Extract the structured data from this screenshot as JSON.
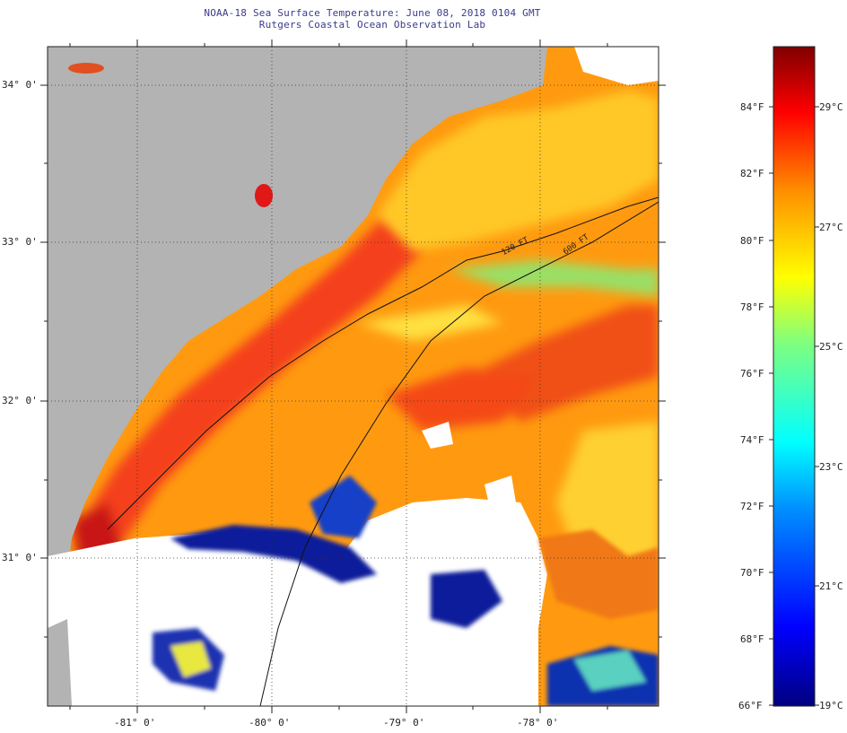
{
  "header": {
    "title": "NOAA-18 Sea Surface Temperature:  June 08, 2018 0104 GMT",
    "subtitle": "Rutgers Coastal Ocean Observation Lab"
  },
  "map": {
    "lat_labels": [
      "34° 0'",
      "33° 0'",
      "32° 0'",
      "31° 0'"
    ],
    "lon_labels": [
      "-81° 0'",
      "-80° 0'",
      "-79° 0'",
      "-78° 0'"
    ],
    "contour_labels": [
      "120 FT",
      "600 FT"
    ],
    "colors": {
      "land": "#b3b3b3",
      "cloud": "#ffffff",
      "warm": "#f0461e",
      "mid": "#ffaa00",
      "cool": "#eedd22",
      "cold": "#0a1a9a"
    }
  },
  "colorbar": {
    "f_labels": [
      "84°F",
      "82°F",
      "80°F",
      "78°F",
      "76°F",
      "74°F",
      "72°F",
      "70°F",
      "68°F",
      "66°F"
    ],
    "c_labels": [
      "29°C",
      "27°C",
      "25°C",
      "23°C",
      "21°C",
      "19°C"
    ],
    "range_f": [
      66,
      86
    ]
  }
}
